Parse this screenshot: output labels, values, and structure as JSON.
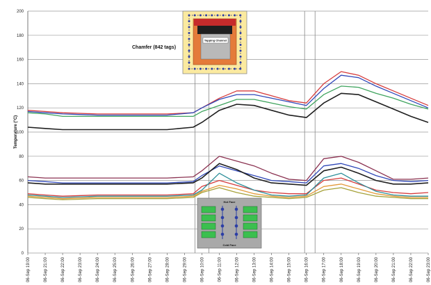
{
  "chart_data": {
    "type": "line",
    "ylabel": "Temperature (°C)",
    "ylim": [
      0,
      200
    ],
    "yticks": [
      0,
      20,
      40,
      60,
      80,
      100,
      120,
      140,
      160,
      180,
      200
    ],
    "grid": "horizontal",
    "xticks": [
      "06-Sep 19:00",
      "06-Sep 21:00",
      "06-Sep 22:00",
      "06-Sep 23:00",
      "06-Sep 24:00",
      "06-Sep 25:00",
      "06-Sep 26:00",
      "06-Sep 27:00",
      "06-Sep 28:00",
      "06-Sep 29:00",
      "06-Sep 10:00",
      "06-Sep 11:00",
      "06-Sep 12:00",
      "06-Sep 13:00",
      "06-Sep 14:00",
      "06-Sep 15:00",
      "06-Sep 16:00",
      "06-Sep 17:00",
      "06-Sep 18:00",
      "06-Sep 19:00",
      "06-Sep 20:00",
      "06-Sep 21:00",
      "06-Sep 22:00",
      "06-Sep 23:00"
    ],
    "vlines_x": [
      9.6,
      10.4,
      15.9,
      16.5
    ],
    "annotations": {
      "chamfer": "Chamfer (842 tags)",
      "inset_top_label": "Tapping Channel",
      "inset_hot": "Hot Face",
      "inset_cold": "Cold Face"
    },
    "colors": {
      "red": "#d63c3c",
      "blue": "#2f47b8",
      "green": "#3fa45e",
      "black": "#1e1e1e",
      "orange": "#e39a3a",
      "maroon": "#8a3150",
      "teal": "#2d8f9a",
      "olive": "#a6a23a"
    },
    "series": [
      {
        "color_key": "red",
        "x": [
          0,
          1,
          2,
          4,
          6,
          8,
          9.5,
          10,
          11,
          12,
          13,
          14,
          15,
          16,
          17,
          18,
          19,
          20,
          21,
          22,
          23
        ],
        "y": [
          118,
          117,
          116,
          115,
          115,
          115,
          116,
          120,
          128,
          134,
          134,
          130,
          126,
          124,
          140,
          150,
          147,
          140,
          134,
          128,
          122
        ]
      },
      {
        "color_key": "blue",
        "x": [
          0,
          1,
          2,
          4,
          6,
          8,
          9.5,
          10,
          11,
          12,
          13,
          14,
          15,
          16,
          17,
          18,
          19,
          20,
          21,
          22,
          23
        ],
        "y": [
          117,
          116,
          115,
          114,
          114,
          114,
          116,
          120,
          127,
          131,
          131,
          128,
          125,
          122,
          136,
          147,
          145,
          138,
          132,
          126,
          120
        ]
      },
      {
        "color_key": "green",
        "x": [
          0,
          1,
          2,
          4,
          6,
          8,
          9.5,
          10,
          11,
          12,
          13,
          14,
          15,
          16,
          17,
          18,
          19,
          20,
          21,
          22,
          23
        ],
        "y": [
          116,
          115,
          113,
          113,
          113,
          113,
          113,
          117,
          122,
          127,
          127,
          124,
          121,
          119,
          131,
          138,
          137,
          132,
          128,
          123,
          119
        ]
      },
      {
        "color_key": "black",
        "x": [
          0,
          1,
          2,
          4,
          6,
          8,
          9.5,
          10,
          11,
          12,
          13,
          14,
          15,
          16,
          17,
          18,
          19,
          20,
          21,
          22,
          23
        ],
        "y": [
          104,
          103,
          102,
          102,
          102,
          102,
          104,
          108,
          118,
          123,
          122,
          118,
          114,
          112,
          124,
          132,
          131,
          125,
          119,
          113,
          108
        ]
      },
      {
        "color_key": "maroon",
        "x": [
          0,
          1,
          2,
          4,
          6,
          8,
          9.5,
          10,
          11,
          12,
          13,
          14,
          15,
          16,
          17,
          18,
          19,
          20,
          21,
          22,
          23
        ],
        "y": [
          63,
          62,
          62,
          62,
          62,
          62,
          63,
          68,
          80,
          76,
          72,
          66,
          61,
          60,
          78,
          80,
          75,
          68,
          61,
          61,
          62
        ]
      },
      {
        "color_key": "blue",
        "x": [
          0,
          1,
          2,
          4,
          6,
          8,
          9.5,
          10,
          11,
          12,
          13,
          14,
          15,
          16,
          17,
          18,
          19,
          20,
          21,
          22,
          23
        ],
        "y": [
          60,
          59,
          58,
          58,
          58,
          58,
          59,
          64,
          72,
          68,
          64,
          60,
          59,
          58,
          72,
          74,
          70,
          64,
          60,
          59,
          60
        ]
      },
      {
        "color_key": "black",
        "x": [
          0,
          1,
          2,
          4,
          6,
          8,
          9.5,
          10,
          11,
          12,
          13,
          14,
          15,
          16,
          17,
          18,
          19,
          20,
          21,
          22,
          23
        ],
        "y": [
          58,
          57,
          57,
          57,
          57,
          57,
          58,
          62,
          74,
          69,
          62,
          58,
          57,
          56,
          68,
          71,
          66,
          60,
          57,
          57,
          58
        ]
      },
      {
        "color_key": "red",
        "x": [
          0,
          1,
          2,
          4,
          6,
          8,
          9.5,
          10,
          11,
          12,
          13,
          14,
          15,
          16,
          17,
          18,
          19,
          20,
          21,
          22,
          23
        ],
        "y": [
          49,
          48,
          47,
          48,
          48,
          48,
          49,
          55,
          60,
          56,
          52,
          50,
          49,
          49,
          60,
          62,
          57,
          52,
          50,
          49,
          50
        ]
      },
      {
        "color_key": "teal",
        "x": [
          0,
          1,
          2,
          4,
          6,
          8,
          9.5,
          10,
          11,
          12,
          13,
          14,
          15,
          16,
          17,
          18,
          19,
          20,
          21,
          22,
          23
        ],
        "y": [
          48,
          47,
          46,
          47,
          47,
          47,
          48,
          52,
          66,
          58,
          52,
          48,
          47,
          48,
          62,
          66,
          58,
          51,
          48,
          47,
          47
        ]
      },
      {
        "color_key": "orange",
        "x": [
          0,
          1,
          2,
          4,
          6,
          8,
          9.5,
          10,
          11,
          12,
          13,
          14,
          15,
          16,
          17,
          18,
          19,
          20,
          21,
          22,
          23
        ],
        "y": [
          47,
          46,
          45,
          46,
          46,
          46,
          47,
          51,
          56,
          53,
          49,
          47,
          46,
          47,
          55,
          57,
          53,
          49,
          47,
          46,
          46
        ]
      },
      {
        "color_key": "olive",
        "x": [
          0,
          1,
          2,
          4,
          6,
          8,
          9.5,
          10,
          11,
          12,
          13,
          14,
          15,
          16,
          17,
          18,
          19,
          20,
          21,
          22,
          23
        ],
        "y": [
          46,
          45,
          44,
          45,
          45,
          45,
          46,
          50,
          54,
          50,
          47,
          46,
          45,
          46,
          52,
          54,
          50,
          47,
          46,
          45,
          45
        ]
      }
    ]
  }
}
